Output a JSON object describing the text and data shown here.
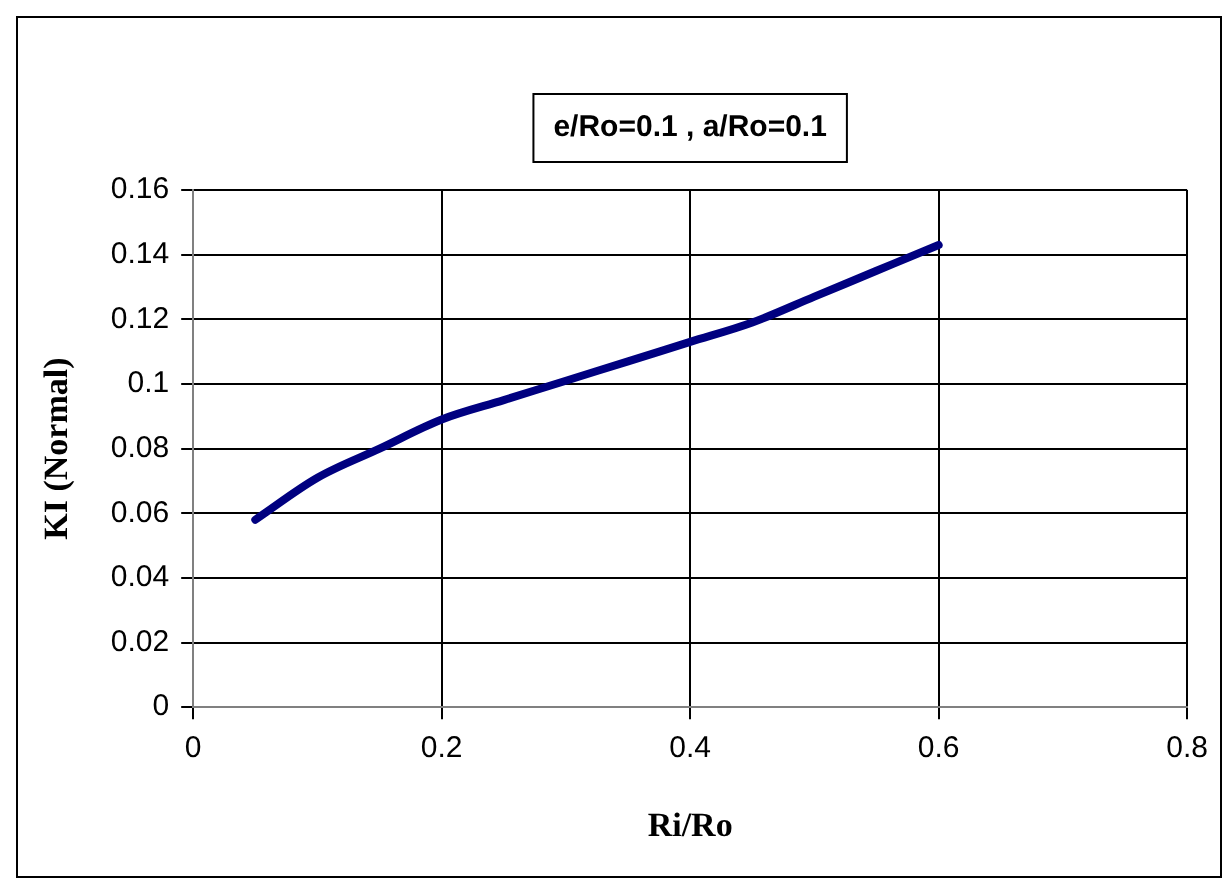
{
  "chart_data": {
    "type": "line",
    "title": "e/Ro=0.1 , a/Ro=0.1",
    "xlabel": "Ri/Ro",
    "ylabel": "KI (Normal)",
    "x": [
      0.05,
      0.1,
      0.15,
      0.2,
      0.25,
      0.3,
      0.35,
      0.4,
      0.45,
      0.5,
      0.55,
      0.6
    ],
    "series": [
      {
        "color": "#000080",
        "values": [
          0.058,
          0.071,
          0.08,
          0.089,
          0.095,
          0.101,
          0.107,
          0.113,
          0.119,
          0.127,
          0.135,
          0.143
        ]
      }
    ],
    "xlim": [
      0,
      0.8
    ],
    "xticks": [
      0,
      0.2,
      0.4,
      0.6,
      0.8
    ],
    "ylim": [
      0,
      0.16
    ],
    "yticks": [
      0,
      0.02,
      0.04,
      0.06,
      0.08,
      0.1,
      0.12,
      0.14,
      0.16
    ],
    "grid": true,
    "legend": false,
    "marker": "none",
    "line_style": "solid"
  }
}
